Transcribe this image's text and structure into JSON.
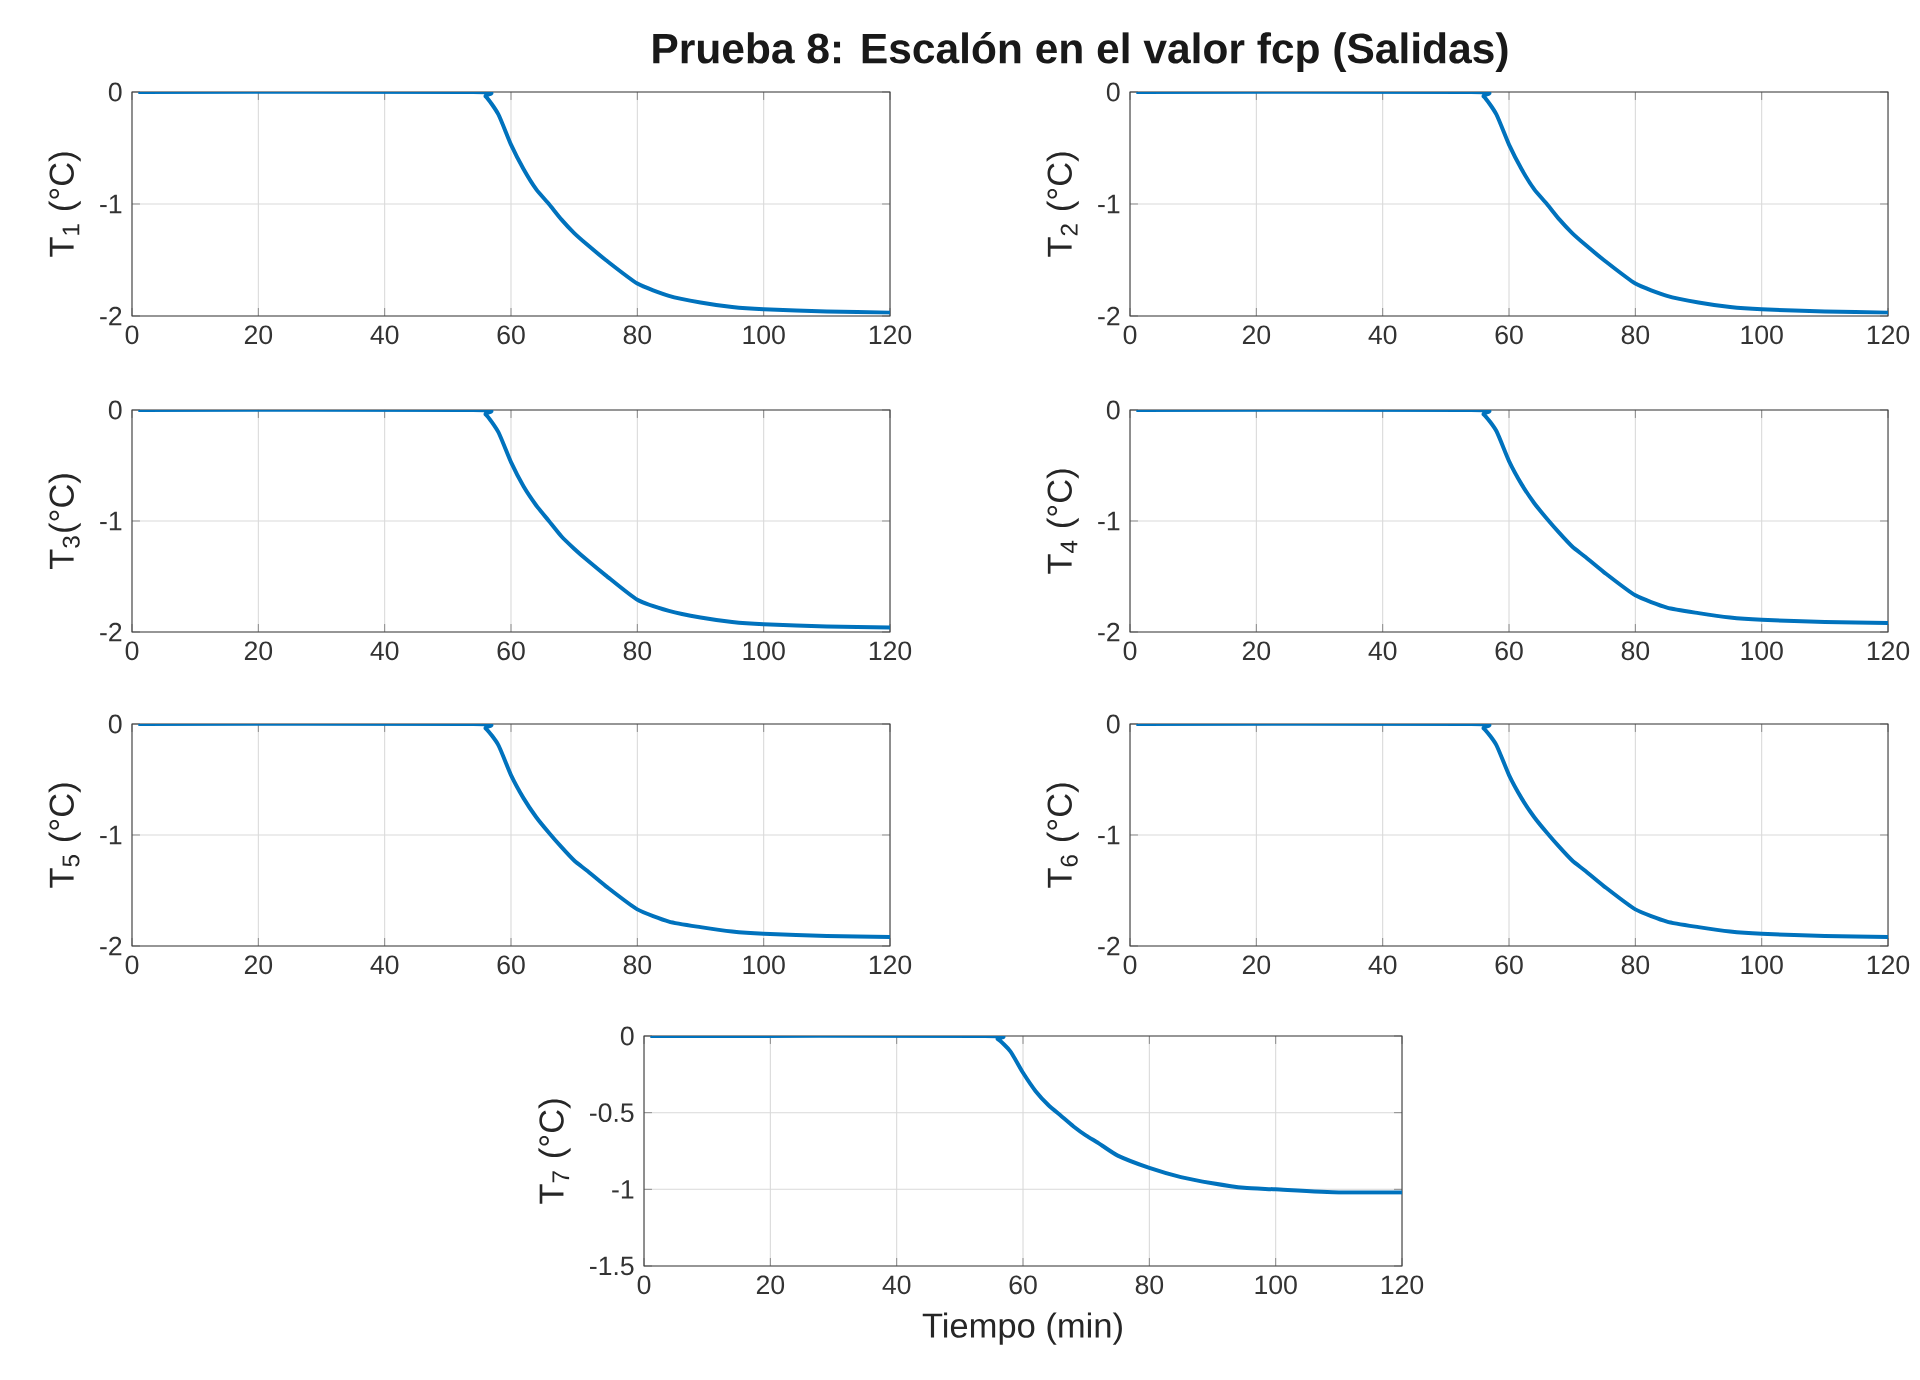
{
  "chart_data": [
    {
      "type": "line",
      "title": "Prueba 8: Escalón en el valor fcp (Salidas)",
      "ylabel": "T$_{1}$ (°C)",
      "x": [
        1,
        54,
        56,
        58,
        60,
        62,
        64,
        66,
        68,
        70,
        72,
        75,
        80,
        85,
        90,
        95,
        100,
        110,
        120
      ],
      "xlim": [
        0,
        120
      ],
      "xticks": [
        0,
        20,
        40,
        60,
        80,
        100,
        120
      ],
      "ylim": [
        -2,
        0
      ],
      "yticks": [
        -2,
        -1,
        0
      ],
      "grid": true,
      "series": [
        {
          "color": "#0072bd",
          "values": [
            0,
            0,
            -0.04,
            -0.2,
            -0.47,
            -0.69,
            -0.87,
            -1.0,
            -1.14,
            -1.26,
            -1.36,
            -1.5,
            -1.71,
            -1.82,
            -1.88,
            -1.92,
            -1.94,
            -1.96,
            -1.97
          ]
        }
      ]
    },
    {
      "type": "line",
      "ylabel": "T$_{2}$ (°C)",
      "x": [
        1,
        54,
        56,
        58,
        60,
        62,
        64,
        66,
        68,
        70,
        72,
        75,
        80,
        85,
        90,
        95,
        100,
        110,
        120
      ],
      "xlim": [
        0,
        120
      ],
      "xticks": [
        0,
        20,
        40,
        60,
        80,
        100,
        120
      ],
      "ylim": [
        -2,
        0
      ],
      "yticks": [
        -2,
        -1,
        0
      ],
      "grid": true,
      "series": [
        {
          "color": "#0072bd",
          "values": [
            0,
            0,
            -0.04,
            -0.2,
            -0.47,
            -0.69,
            -0.87,
            -1.0,
            -1.14,
            -1.26,
            -1.36,
            -1.5,
            -1.71,
            -1.82,
            -1.88,
            -1.92,
            -1.94,
            -1.96,
            -1.97
          ]
        }
      ]
    },
    {
      "type": "line",
      "ylabel": "T$_{3}$(°C)",
      "x": [
        1,
        54,
        56,
        58,
        60,
        62,
        64,
        66,
        68,
        70,
        72,
        75,
        80,
        85,
        90,
        95,
        100,
        110,
        120
      ],
      "xlim": [
        0,
        120
      ],
      "xticks": [
        0,
        20,
        40,
        60,
        80,
        100,
        120
      ],
      "ylim": [
        -2,
        0
      ],
      "yticks": [
        -2,
        -1,
        0
      ],
      "grid": true,
      "series": [
        {
          "color": "#0072bd",
          "values": [
            0,
            0,
            -0.04,
            -0.2,
            -0.47,
            -0.69,
            -0.86,
            -1.0,
            -1.14,
            -1.25,
            -1.35,
            -1.49,
            -1.71,
            -1.81,
            -1.87,
            -1.91,
            -1.93,
            -1.95,
            -1.96
          ]
        }
      ]
    },
    {
      "type": "line",
      "ylabel": "T$_{4}$ (°C)",
      "x": [
        1,
        54,
        56,
        58,
        60,
        62,
        64,
        66,
        68,
        70,
        72,
        75,
        80,
        85,
        90,
        95,
        100,
        110,
        120
      ],
      "xlim": [
        0,
        120
      ],
      "xticks": [
        0,
        20,
        40,
        60,
        80,
        100,
        120
      ],
      "ylim": [
        -2,
        0
      ],
      "yticks": [
        -2,
        -1,
        0
      ],
      "grid": true,
      "series": [
        {
          "color": "#0072bd",
          "values": [
            0,
            0,
            -0.04,
            -0.19,
            -0.46,
            -0.67,
            -0.84,
            -0.98,
            -1.11,
            -1.23,
            -1.32,
            -1.46,
            -1.67,
            -1.78,
            -1.83,
            -1.87,
            -1.89,
            -1.91,
            -1.92
          ]
        }
      ]
    },
    {
      "type": "line",
      "ylabel": "T$_{5}$ (°C)",
      "x": [
        1,
        54,
        56,
        58,
        60,
        62,
        64,
        66,
        68,
        70,
        72,
        75,
        80,
        85,
        90,
        95,
        100,
        110,
        120
      ],
      "xlim": [
        0,
        120
      ],
      "xticks": [
        0,
        20,
        40,
        60,
        80,
        100,
        120
      ],
      "ylim": [
        -2,
        0
      ],
      "yticks": [
        -2,
        -1,
        0
      ],
      "grid": true,
      "series": [
        {
          "color": "#0072bd",
          "values": [
            0,
            0,
            -0.04,
            -0.19,
            -0.46,
            -0.67,
            -0.84,
            -0.98,
            -1.11,
            -1.23,
            -1.32,
            -1.46,
            -1.67,
            -1.78,
            -1.83,
            -1.87,
            -1.89,
            -1.91,
            -1.92
          ]
        }
      ]
    },
    {
      "type": "line",
      "ylabel": "T$_{6}$ (°C)",
      "x": [
        1,
        54,
        56,
        58,
        60,
        62,
        64,
        66,
        68,
        70,
        72,
        75,
        80,
        85,
        90,
        95,
        100,
        110,
        120
      ],
      "xlim": [
        0,
        120
      ],
      "xticks": [
        0,
        20,
        40,
        60,
        80,
        100,
        120
      ],
      "ylim": [
        -2,
        0
      ],
      "yticks": [
        -2,
        -1,
        0
      ],
      "grid": true,
      "series": [
        {
          "color": "#0072bd",
          "values": [
            0,
            0,
            -0.04,
            -0.19,
            -0.46,
            -0.67,
            -0.84,
            -0.98,
            -1.11,
            -1.23,
            -1.32,
            -1.46,
            -1.67,
            -1.78,
            -1.83,
            -1.87,
            -1.89,
            -1.91,
            -1.92
          ]
        }
      ]
    },
    {
      "type": "line",
      "ylabel": "T$_{7}$ (°C)",
      "xlabel": "Tiempo (min)",
      "x": [
        1,
        54,
        56,
        58,
        60,
        62,
        64,
        66,
        68,
        70,
        72,
        75,
        80,
        85,
        90,
        95,
        100,
        110,
        120
      ],
      "xlim": [
        0,
        120
      ],
      "xticks": [
        0,
        20,
        40,
        60,
        80,
        100,
        120
      ],
      "ylim": [
        -1.5,
        0
      ],
      "yticks": [
        -1.5,
        -1,
        -0.5,
        0
      ],
      "grid": true,
      "series": [
        {
          "color": "#0072bd",
          "values": [
            0,
            0,
            -0.02,
            -0.1,
            -0.24,
            -0.36,
            -0.45,
            -0.52,
            -0.59,
            -0.65,
            -0.7,
            -0.78,
            -0.86,
            -0.92,
            -0.96,
            -0.99,
            -1.0,
            -1.02,
            -1.02
          ]
        }
      ]
    }
  ]
}
